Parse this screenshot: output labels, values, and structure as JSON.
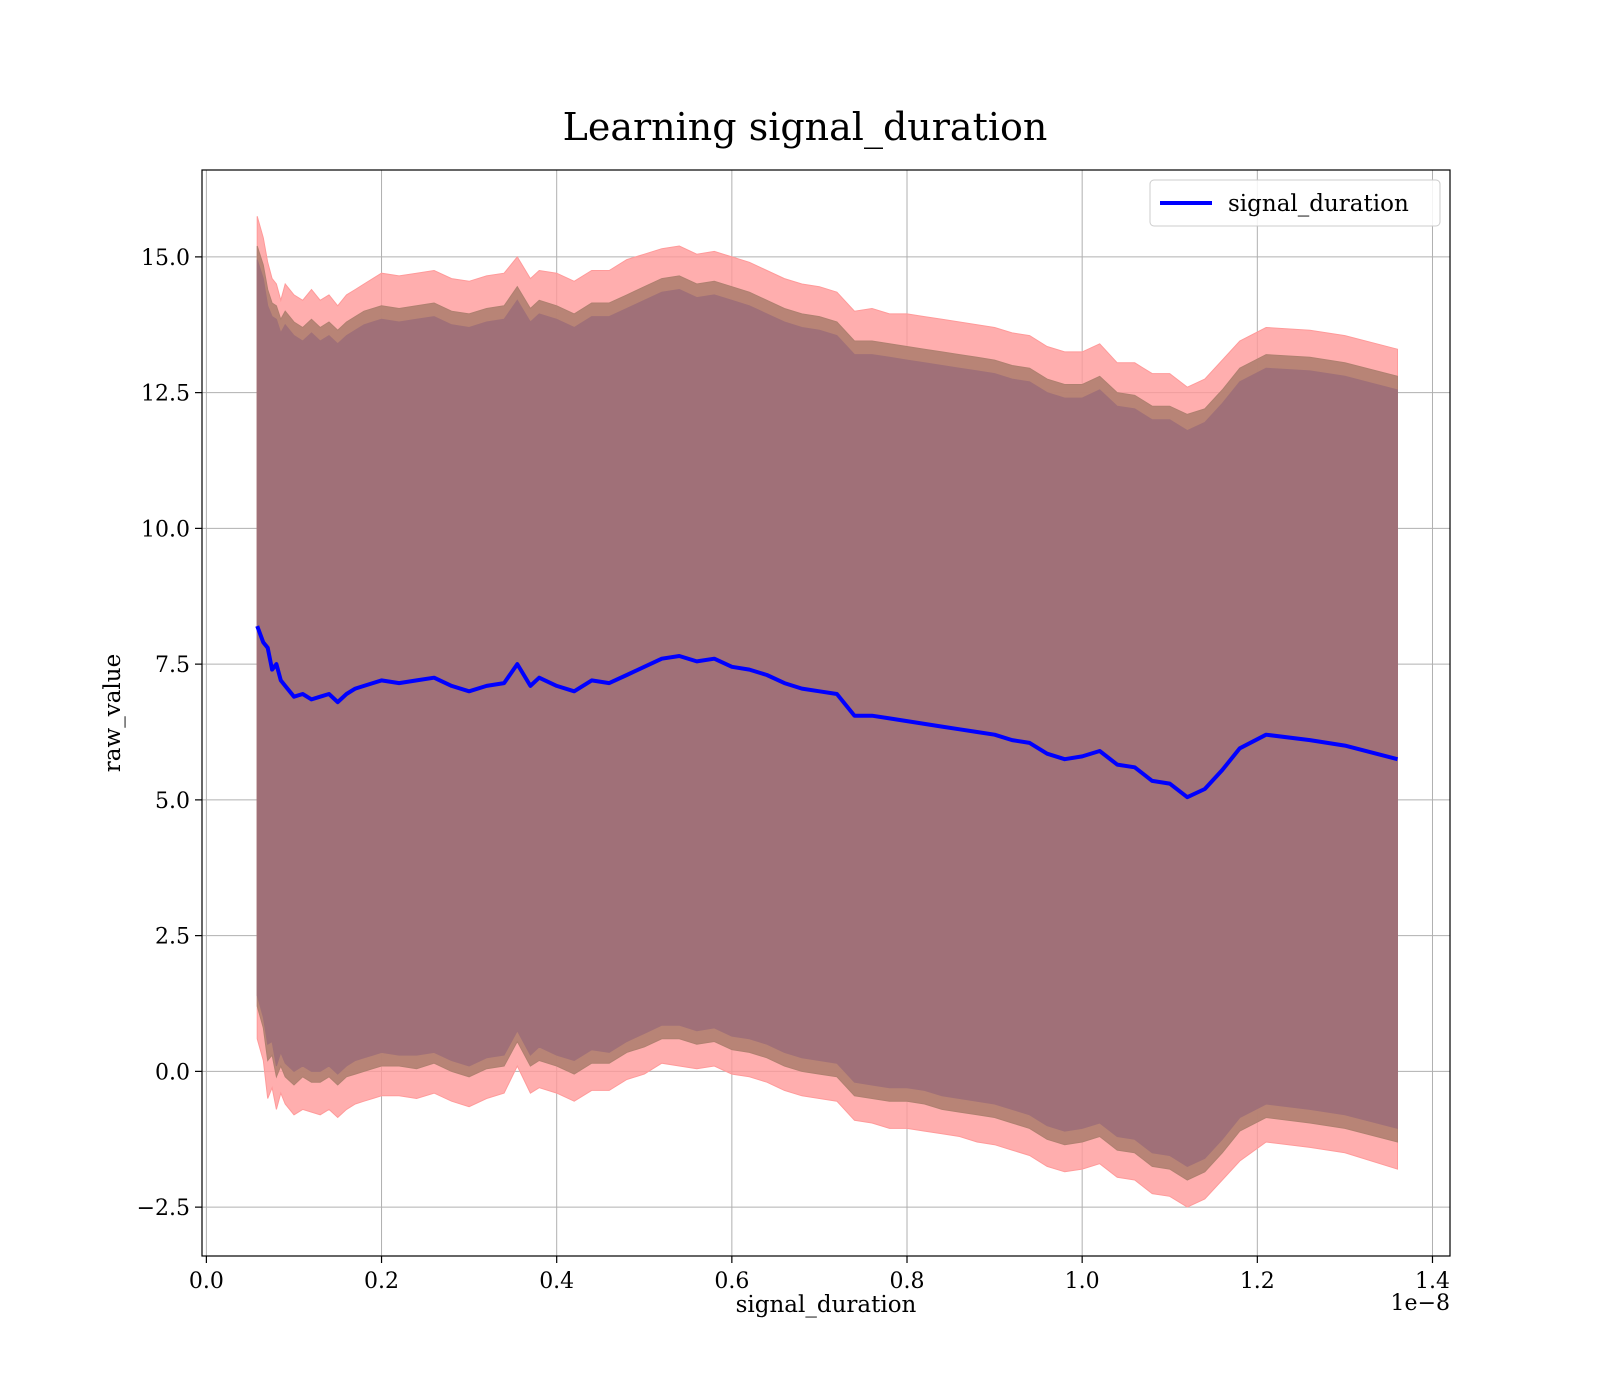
{
  "chart_data": {
    "type": "line",
    "title": "Learning signal_duration",
    "xlabel": "signal_duration",
    "ylabel": "raw_value",
    "x_offset_label": "1e−8",
    "xlim": [
      -0.005,
      1.42
    ],
    "ylim": [
      -3.4,
      16.6
    ],
    "x_ticks": [
      0.0,
      0.2,
      0.4,
      0.6,
      0.8,
      1.0,
      1.2,
      1.4
    ],
    "x_tick_labels": [
      "0.0",
      "0.2",
      "0.4",
      "0.6",
      "0.8",
      "1.0",
      "1.2",
      "1.4"
    ],
    "y_ticks": [
      -2.5,
      0.0,
      2.5,
      5.0,
      7.5,
      10.0,
      12.5,
      15.0
    ],
    "y_tick_labels": [
      "−2.5",
      "0.0",
      "2.5",
      "5.0",
      "7.5",
      "10.0",
      "12.5",
      "15.0"
    ],
    "grid": true,
    "legend": {
      "position": "upper-right",
      "entries": [
        "signal_duration"
      ]
    },
    "colors": {
      "line": "#0000ff",
      "band_outer": "#ff9a9a",
      "band_middle": "#b08070",
      "band_inner": "#a07078"
    },
    "series": [
      {
        "name": "signal_duration",
        "x": [
          0.058,
          0.065,
          0.07,
          0.075,
          0.08,
          0.085,
          0.09,
          0.1,
          0.11,
          0.12,
          0.13,
          0.14,
          0.15,
          0.16,
          0.17,
          0.18,
          0.19,
          0.2,
          0.22,
          0.24,
          0.26,
          0.28,
          0.3,
          0.32,
          0.34,
          0.355,
          0.37,
          0.38,
          0.4,
          0.42,
          0.44,
          0.46,
          0.48,
          0.5,
          0.52,
          0.54,
          0.56,
          0.58,
          0.6,
          0.62,
          0.64,
          0.66,
          0.68,
          0.7,
          0.72,
          0.74,
          0.76,
          0.78,
          0.8,
          0.82,
          0.84,
          0.86,
          0.88,
          0.9,
          0.92,
          0.94,
          0.96,
          0.98,
          1.0,
          1.02,
          1.04,
          1.06,
          1.08,
          1.1,
          1.12,
          1.14,
          1.16,
          1.18,
          1.21,
          1.26,
          1.3,
          1.36
        ],
        "values": [
          8.2,
          7.9,
          7.8,
          7.4,
          7.5,
          7.2,
          7.1,
          6.9,
          6.95,
          6.85,
          6.9,
          6.95,
          6.8,
          6.95,
          7.05,
          7.1,
          7.15,
          7.2,
          7.15,
          7.2,
          7.25,
          7.1,
          7.0,
          7.1,
          7.15,
          7.5,
          7.1,
          7.25,
          7.1,
          7.0,
          7.2,
          7.15,
          7.3,
          7.45,
          7.6,
          7.65,
          7.55,
          7.6,
          7.45,
          7.4,
          7.3,
          7.15,
          7.05,
          7.0,
          6.95,
          6.55,
          6.55,
          6.5,
          6.45,
          6.4,
          6.35,
          6.3,
          6.25,
          6.2,
          6.1,
          6.05,
          5.85,
          5.75,
          5.8,
          5.9,
          5.65,
          5.6,
          5.35,
          5.3,
          5.05,
          5.2,
          5.55,
          5.95,
          6.2,
          6.1,
          6.0,
          5.75
        ]
      }
    ],
    "bands": [
      {
        "level": "outer",
        "lower": [
          0.6,
          0.2,
          -0.5,
          -0.3,
          -0.7,
          -0.4,
          -0.6,
          -0.8,
          -0.7,
          -0.75,
          -0.8,
          -0.7,
          -0.85,
          -0.7,
          -0.6,
          -0.55,
          -0.5,
          -0.45,
          -0.45,
          -0.5,
          -0.4,
          -0.55,
          -0.65,
          -0.5,
          -0.4,
          0.1,
          -0.4,
          -0.3,
          -0.4,
          -0.55,
          -0.35,
          -0.35,
          -0.15,
          -0.05,
          0.15,
          0.1,
          0.05,
          0.1,
          -0.05,
          -0.1,
          -0.2,
          -0.35,
          -0.45,
          -0.5,
          -0.55,
          -0.9,
          -0.95,
          -1.05,
          -1.05,
          -1.1,
          -1.15,
          -1.2,
          -1.3,
          -1.35,
          -1.45,
          -1.55,
          -1.75,
          -1.85,
          -1.8,
          -1.7,
          -1.95,
          -2.0,
          -2.25,
          -2.3,
          -2.5,
          -2.35,
          -2.0,
          -1.65,
          -1.3,
          -1.4,
          -1.5,
          -1.8
        ],
        "upper": [
          15.75,
          15.35,
          14.9,
          14.6,
          14.5,
          14.2,
          14.5,
          14.3,
          14.2,
          14.4,
          14.2,
          14.3,
          14.1,
          14.3,
          14.4,
          14.5,
          14.6,
          14.7,
          14.65,
          14.7,
          14.75,
          14.6,
          14.55,
          14.65,
          14.7,
          15.0,
          14.6,
          14.75,
          14.7,
          14.55,
          14.75,
          14.75,
          14.95,
          15.05,
          15.15,
          15.2,
          15.05,
          15.1,
          15.0,
          14.9,
          14.75,
          14.6,
          14.5,
          14.45,
          14.35,
          14.0,
          14.05,
          13.95,
          13.95,
          13.9,
          13.85,
          13.8,
          13.75,
          13.7,
          13.6,
          13.55,
          13.35,
          13.25,
          13.25,
          13.4,
          13.05,
          13.05,
          12.85,
          12.85,
          12.6,
          12.75,
          13.1,
          13.45,
          13.7,
          13.65,
          13.55,
          13.3
        ]
      },
      {
        "level": "middle",
        "lower": [
          1.2,
          0.8,
          0.2,
          0.3,
          -0.1,
          0.1,
          -0.1,
          -0.25,
          -0.1,
          -0.2,
          -0.2,
          -0.1,
          -0.25,
          -0.1,
          -0.05,
          0.0,
          0.05,
          0.1,
          0.1,
          0.05,
          0.15,
          0.0,
          -0.1,
          0.05,
          0.1,
          0.55,
          0.1,
          0.2,
          0.1,
          -0.05,
          0.15,
          0.15,
          0.35,
          0.45,
          0.6,
          0.6,
          0.5,
          0.55,
          0.4,
          0.35,
          0.25,
          0.1,
          0.0,
          -0.05,
          -0.1,
          -0.45,
          -0.5,
          -0.55,
          -0.55,
          -0.6,
          -0.7,
          -0.75,
          -0.8,
          -0.85,
          -0.95,
          -1.05,
          -1.25,
          -1.35,
          -1.3,
          -1.2,
          -1.45,
          -1.5,
          -1.75,
          -1.8,
          -2.0,
          -1.85,
          -1.5,
          -1.1,
          -0.85,
          -0.95,
          -1.05,
          -1.3
        ],
        "upper": [
          15.2,
          14.85,
          14.4,
          14.15,
          14.1,
          13.85,
          14.0,
          13.8,
          13.7,
          13.85,
          13.7,
          13.8,
          13.65,
          13.8,
          13.9,
          14.0,
          14.05,
          14.1,
          14.05,
          14.1,
          14.15,
          14.0,
          13.95,
          14.05,
          14.1,
          14.45,
          14.05,
          14.2,
          14.1,
          13.95,
          14.15,
          14.15,
          14.3,
          14.45,
          14.6,
          14.65,
          14.5,
          14.55,
          14.45,
          14.35,
          14.2,
          14.05,
          13.95,
          13.9,
          13.8,
          13.45,
          13.45,
          13.4,
          13.35,
          13.3,
          13.25,
          13.2,
          13.15,
          13.1,
          13.0,
          12.95,
          12.75,
          12.65,
          12.65,
          12.8,
          12.5,
          12.45,
          12.25,
          12.25,
          12.1,
          12.2,
          12.55,
          12.95,
          13.2,
          13.15,
          13.05,
          12.8
        ]
      },
      {
        "level": "inner",
        "lower": [
          1.4,
          1.0,
          0.5,
          0.55,
          0.1,
          0.35,
          0.15,
          0.0,
          0.1,
          0.0,
          0.0,
          0.1,
          -0.05,
          0.1,
          0.2,
          0.25,
          0.3,
          0.35,
          0.3,
          0.3,
          0.35,
          0.2,
          0.1,
          0.25,
          0.3,
          0.75,
          0.3,
          0.45,
          0.3,
          0.2,
          0.4,
          0.35,
          0.55,
          0.7,
          0.85,
          0.85,
          0.75,
          0.8,
          0.65,
          0.6,
          0.5,
          0.35,
          0.25,
          0.2,
          0.15,
          -0.2,
          -0.25,
          -0.3,
          -0.3,
          -0.35,
          -0.45,
          -0.5,
          -0.55,
          -0.6,
          -0.7,
          -0.8,
          -1.0,
          -1.1,
          -1.05,
          -0.95,
          -1.2,
          -1.25,
          -1.5,
          -1.55,
          -1.75,
          -1.6,
          -1.25,
          -0.85,
          -0.6,
          -0.7,
          -0.8,
          -1.05
        ],
        "upper": [
          14.95,
          14.6,
          14.1,
          13.9,
          13.85,
          13.6,
          13.75,
          13.55,
          13.45,
          13.6,
          13.45,
          13.55,
          13.4,
          13.55,
          13.65,
          13.75,
          13.8,
          13.85,
          13.8,
          13.85,
          13.9,
          13.75,
          13.7,
          13.8,
          13.85,
          14.2,
          13.8,
          13.95,
          13.85,
          13.7,
          13.9,
          13.9,
          14.05,
          14.2,
          14.35,
          14.4,
          14.25,
          14.3,
          14.2,
          14.1,
          13.95,
          13.8,
          13.7,
          13.65,
          13.55,
          13.2,
          13.2,
          13.15,
          13.1,
          13.05,
          13.0,
          12.95,
          12.9,
          12.85,
          12.75,
          12.7,
          12.5,
          12.4,
          12.4,
          12.55,
          12.25,
          12.2,
          12.0,
          12.0,
          11.8,
          11.95,
          12.3,
          12.7,
          12.95,
          12.9,
          12.8,
          12.55
        ]
      }
    ]
  }
}
